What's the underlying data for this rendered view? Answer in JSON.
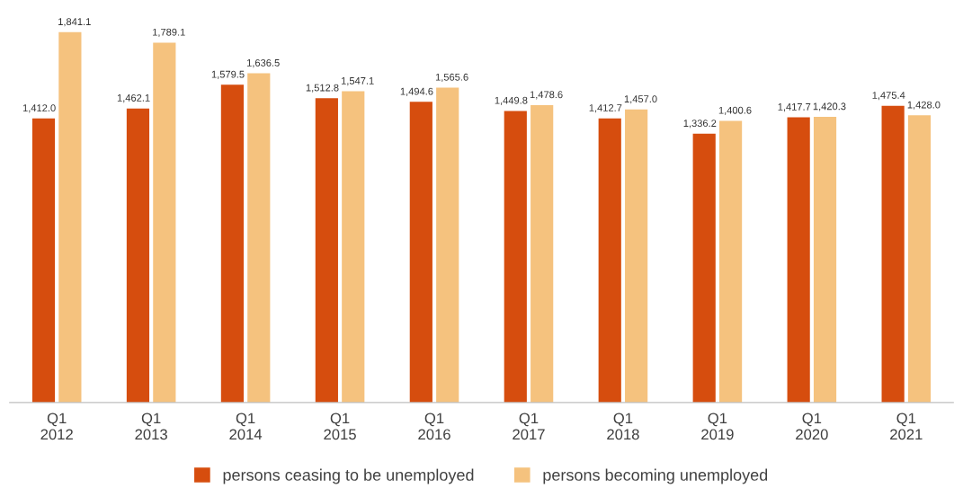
{
  "chart_data": {
    "type": "bar",
    "categories": [
      "Q1\n2012",
      "Q1\n2013",
      "Q1\n2014",
      "Q1\n2015",
      "Q1\n2016",
      "Q1\n2017",
      "Q1\n2018",
      "Q1\n2019",
      "Q1\n2020",
      "Q1\n2021"
    ],
    "series": [
      {
        "name": "persons ceasing to be unemployed",
        "color": "#d64d0e",
        "values": [
          1412.0,
          1462.1,
          1579.5,
          1512.8,
          1494.6,
          1449.8,
          1412.7,
          1336.2,
          1417.7,
          1475.4
        ],
        "value_labels": [
          "1,412.0",
          "1,462.1",
          "1,579.5",
          "1,512.8",
          "1,494.6",
          "1,449.8",
          "1,412.7",
          "1,336.2",
          "1,417.7",
          "1,475.4"
        ]
      },
      {
        "name": "persons becoming unemployed",
        "color": "#f5c27e",
        "values": [
          1841.1,
          1789.1,
          1636.5,
          1547.1,
          1565.6,
          1478.6,
          1457.0,
          1400.6,
          1420.3,
          1428.0
        ],
        "value_labels": [
          "1,841.1",
          "1,789.1",
          "1,636.5",
          "1,547.1",
          "1,565.6",
          "1,478.6",
          "1,457.0",
          "1,400.6",
          "1,420.3",
          "1,428.0"
        ]
      }
    ],
    "legend": "bottom",
    "grid": false,
    "tick_labels": "x"
  }
}
